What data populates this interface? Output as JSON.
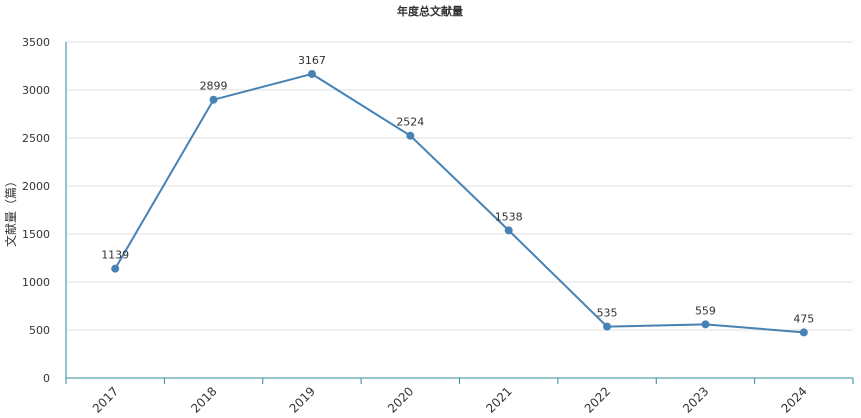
{
  "chart_data": {
    "type": "line",
    "title": "年度总文献量",
    "xlabel": "",
    "ylabel": "文献量（篇）",
    "categories": [
      "2017",
      "2018",
      "2019",
      "2020",
      "2021",
      "2022",
      "2023",
      "2024"
    ],
    "series": [
      {
        "values": [
          1139,
          2899,
          3167,
          2524,
          1538,
          535,
          559,
          475
        ]
      }
    ],
    "ylim": [
      0,
      3500
    ],
    "yticks": [
      0,
      500,
      1000,
      1500,
      2000,
      2500,
      3000,
      3500
    ],
    "grid": true,
    "legend": "none",
    "data_labels": true,
    "colors": {
      "line": "#4682b4",
      "point": "#4682b4",
      "axis": "#2e8ba0",
      "grid": "#e0e0e0"
    }
  }
}
